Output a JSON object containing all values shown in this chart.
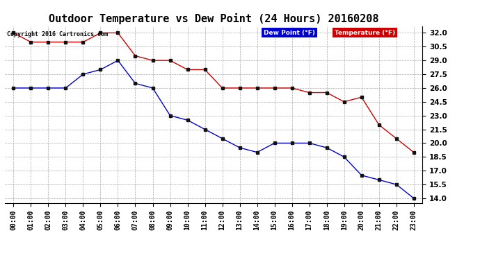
{
  "title": "Outdoor Temperature vs Dew Point (24 Hours) 20160208",
  "copyright": "Copyright 2016 Cartronics.com",
  "x_labels": [
    "00:00",
    "01:00",
    "02:00",
    "03:00",
    "04:00",
    "05:00",
    "06:00",
    "07:00",
    "08:00",
    "09:00",
    "10:00",
    "11:00",
    "12:00",
    "13:00",
    "14:00",
    "15:00",
    "16:00",
    "17:00",
    "18:00",
    "19:00",
    "20:00",
    "21:00",
    "22:00",
    "23:00"
  ],
  "temperature": [
    32.0,
    31.0,
    31.0,
    31.0,
    31.0,
    32.0,
    32.0,
    29.5,
    29.0,
    29.0,
    28.0,
    28.0,
    26.0,
    26.0,
    26.0,
    26.0,
    26.0,
    25.5,
    25.5,
    24.5,
    25.0,
    22.0,
    20.5,
    19.0
  ],
  "dew_point": [
    26.0,
    26.0,
    26.0,
    26.0,
    27.5,
    28.0,
    29.0,
    26.5,
    26.0,
    23.0,
    22.5,
    21.5,
    20.5,
    19.5,
    19.0,
    20.0,
    20.0,
    20.0,
    19.5,
    18.5,
    16.5,
    16.0,
    15.5,
    14.0
  ],
  "temp_color": "#cc0000",
  "dew_color": "#0000cc",
  "bg_color": "#ffffff",
  "grid_color": "#aaaaaa",
  "legend_dew_bg": "#0000cc",
  "legend_temp_bg": "#cc0000",
  "ylim_min": 13.5,
  "ylim_max": 32.75,
  "yticks": [
    14.0,
    15.5,
    17.0,
    18.5,
    20.0,
    21.5,
    23.0,
    24.5,
    26.0,
    27.5,
    29.0,
    30.5,
    32.0
  ],
  "title_fontsize": 11,
  "marker": "s",
  "marker_color": "#111111",
  "marker_size": 3,
  "linewidth": 1.0
}
